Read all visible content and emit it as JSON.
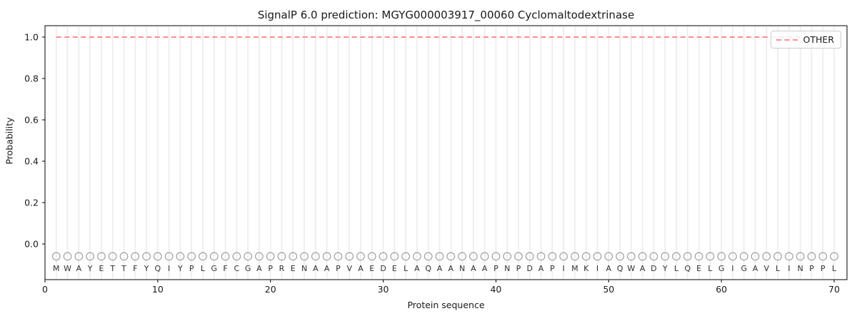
{
  "figure": {
    "title": "SignalP 6.0 prediction: MGYG000003917_00060 Cyclomaltodextrinase",
    "xlabel": "Protein sequence",
    "ylabel": "Probability",
    "legend": {
      "position": "upper-right",
      "entries": [
        {
          "label": "OTHER",
          "color": "#ff8c8c",
          "linestyle": "dashed"
        }
      ]
    }
  },
  "chart_data": {
    "type": "line",
    "title": "SignalP 6.0 prediction: MGYG000003917_00060 Cyclomaltodextrinase",
    "xlabel": "Protein sequence",
    "ylabel": "Probability",
    "xlim": [
      0,
      71.1
    ],
    "ylim": [
      -0.173,
      1.055
    ],
    "x_ticks": [
      0,
      10,
      20,
      30,
      40,
      50,
      60,
      70
    ],
    "y_ticks": [
      0.0,
      0.2,
      0.4,
      0.6,
      0.8,
      1.0
    ],
    "grid": "vertical gridline at each residue position 1-70",
    "sequence": "MWAYETTFYQIYPLGFCGAPRENAAPVAEDELAQAANAAPNPDAPIMKIAQWADYLQELGIGAVLINPPL",
    "sequence_length": 70,
    "series": [
      {
        "name": "OTHER",
        "color": "#ff8c8c",
        "linestyle": "dashed",
        "linewidth": 2,
        "x_start": 1,
        "x_end": 70,
        "y_constant": 1.0
      }
    ],
    "markers": {
      "shape": "open-circle",
      "y": -0.06,
      "radius_px": 5.3,
      "color": "#999999"
    },
    "letters_y": -0.118,
    "colors": {
      "gridline": "#ececec",
      "spine": "#000000",
      "tick_label": "#1a1a1a",
      "letter": "#333333"
    }
  }
}
